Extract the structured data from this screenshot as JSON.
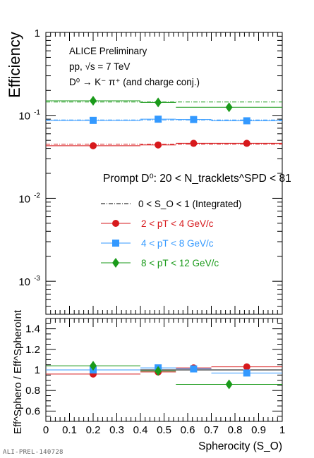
{
  "footer": "ALI-PREL-140728",
  "colors": {
    "red": "#d7191c",
    "blue": "#3399ff",
    "green": "#1a9a1a",
    "black": "#000000"
  },
  "chart_data": [
    {
      "type": "scatter",
      "ylabel": "Efficiency",
      "yscale": "log",
      "ylim": [
        0.0004,
        1
      ],
      "xlim": [
        0,
        1
      ],
      "ytick_labels": [
        "10^-3",
        "10^-2",
        "10^-1",
        "1"
      ],
      "legend_placement": "center",
      "annotations": {
        "experiment": "ALICE Preliminary",
        "system": "pp, √s = 7 TeV",
        "decay": "D⁰ → K⁻ π⁺ (and charge conj.)",
        "selection": "Prompt D⁰: 20 < N_tracklets^SPD < 81"
      },
      "integrated_label": "0 < S_O < 1 (Integrated)",
      "integrated": [
        {
          "series": "2 < pT < 4 GeV/c",
          "value": 0.045
        },
        {
          "series": "4 < pT < 8 GeV/c",
          "value": 0.088
        },
        {
          "series": "8 < pT < 12 GeV/c",
          "value": 0.145
        }
      ],
      "series": [
        {
          "name": "2 < pT < 4 GeV/c",
          "color": "red",
          "marker": "circle",
          "points": [
            {
              "x": 0.2,
              "xlo": 0.0,
              "xhi": 0.4,
              "y": 0.043
            },
            {
              "x": 0.475,
              "xlo": 0.4,
              "xhi": 0.55,
              "y": 0.044
            },
            {
              "x": 0.625,
              "xlo": 0.55,
              "xhi": 0.7,
              "y": 0.046
            },
            {
              "x": 0.85,
              "xlo": 0.7,
              "xhi": 1.0,
              "y": 0.046
            }
          ]
        },
        {
          "name": "4 < pT < 8 GeV/c",
          "color": "blue",
          "marker": "square",
          "points": [
            {
              "x": 0.2,
              "xlo": 0.0,
              "xhi": 0.4,
              "y": 0.087
            },
            {
              "x": 0.475,
              "xlo": 0.4,
              "xhi": 0.55,
              "y": 0.09
            },
            {
              "x": 0.625,
              "xlo": 0.55,
              "xhi": 0.7,
              "y": 0.089
            },
            {
              "x": 0.85,
              "xlo": 0.7,
              "xhi": 1.0,
              "y": 0.086
            }
          ]
        },
        {
          "name": "8 < pT < 12 GeV/c",
          "color": "green",
          "marker": "diamond",
          "points": [
            {
              "x": 0.2,
              "xlo": 0.0,
              "xhi": 0.4,
              "y": 0.15
            },
            {
              "x": 0.475,
              "xlo": 0.4,
              "xhi": 0.55,
              "y": 0.143
            },
            {
              "x": 0.775,
              "xlo": 0.55,
              "xhi": 1.0,
              "y": 0.125
            }
          ]
        }
      ]
    },
    {
      "type": "scatter",
      "xlabel": "Spherocity (S_O)",
      "ylabel": "Eff^Sphero / Eff^SpheroInt",
      "ylim": [
        0.5,
        1.5
      ],
      "xlim": [
        0,
        1
      ],
      "ytick_labels": [
        "0.6",
        "0.8",
        "1",
        "1.2",
        "1.4"
      ],
      "xtick_labels": [
        "0",
        "0.1",
        "0.2",
        "0.3",
        "0.4",
        "0.5",
        "0.6",
        "0.7",
        "0.8",
        "0.9",
        "1"
      ],
      "series": [
        {
          "name": "2 < pT < 4 GeV/c",
          "color": "red",
          "marker": "circle",
          "points": [
            {
              "x": 0.2,
              "xlo": 0.0,
              "xhi": 0.4,
              "y": 0.96
            },
            {
              "x": 0.475,
              "xlo": 0.4,
              "xhi": 0.55,
              "y": 0.98
            },
            {
              "x": 0.625,
              "xlo": 0.55,
              "xhi": 0.7,
              "y": 1.02
            },
            {
              "x": 0.85,
              "xlo": 0.7,
              "xhi": 1.0,
              "y": 1.03
            }
          ]
        },
        {
          "name": "4 < pT < 8 GeV/c",
          "color": "blue",
          "marker": "square",
          "points": [
            {
              "x": 0.2,
              "xlo": 0.0,
              "xhi": 0.4,
              "y": 1.0
            },
            {
              "x": 0.475,
              "xlo": 0.4,
              "xhi": 0.55,
              "y": 1.02
            },
            {
              "x": 0.625,
              "xlo": 0.55,
              "xhi": 0.7,
              "y": 1.01
            },
            {
              "x": 0.85,
              "xlo": 0.7,
              "xhi": 1.0,
              "y": 0.97
            }
          ]
        },
        {
          "name": "8 < pT < 12 GeV/c",
          "color": "green",
          "marker": "diamond",
          "points": [
            {
              "x": 0.2,
              "xlo": 0.0,
              "xhi": 0.4,
              "y": 1.04
            },
            {
              "x": 0.475,
              "xlo": 0.4,
              "xhi": 0.55,
              "y": 0.99
            },
            {
              "x": 0.775,
              "xlo": 0.55,
              "xhi": 1.0,
              "y": 0.86
            }
          ]
        }
      ]
    }
  ]
}
